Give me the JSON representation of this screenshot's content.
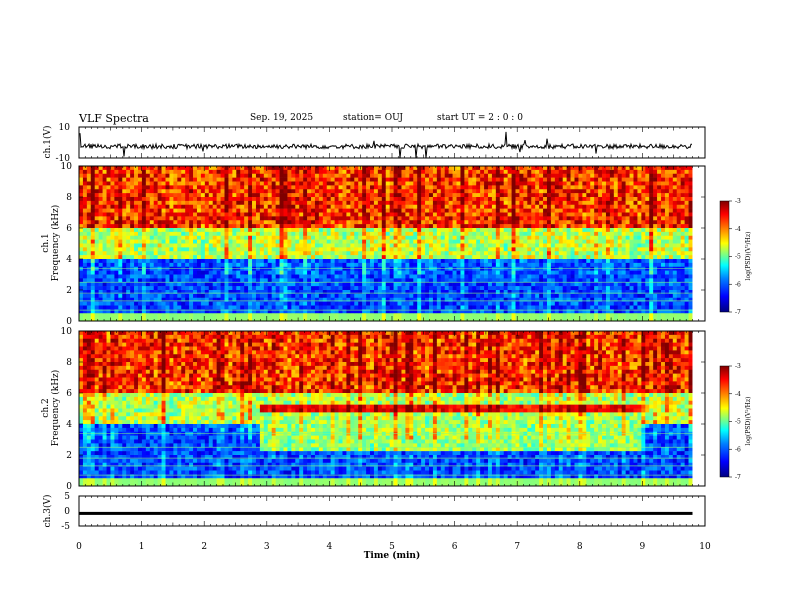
{
  "header": {
    "title": "VLF Spectra",
    "date": "Sep. 19, 2025",
    "station": "station= OUJ",
    "start": "start  UT =   2 : 0  : 0"
  },
  "colors": {
    "colormap": [
      "#00007f",
      "#0000ff",
      "#0080ff",
      "#00ffff",
      "#80ff80",
      "#ffff00",
      "#ff8000",
      "#ff0000",
      "#7f0000"
    ]
  },
  "chart_data": [
    {
      "type": "line",
      "name": "ch1-waveform",
      "ylabel": "ch.1(V)",
      "ylim": [
        -10,
        10
      ],
      "yticks": [
        "10",
        "-10"
      ],
      "xlim": [
        0,
        10
      ],
      "baseline": -2.5
    },
    {
      "type": "heatmap",
      "name": "ch1-spectrogram",
      "ylabel": "ch.1\nFrequency (kHz)",
      "ylim": [
        0,
        10
      ],
      "yticks": [
        "0",
        "2",
        "4",
        "6",
        "8",
        "10"
      ],
      "xlim": [
        0,
        9.8
      ],
      "colorbar": {
        "label": "log(PSD)(V²/Hz)",
        "range": [
          -7,
          -3
        ],
        "ticks": [
          "-3",
          "-4",
          "-5",
          "-6",
          "-7"
        ]
      },
      "features": [
        {
          "desc": "broadband sferics, high level above 6 kHz",
          "freq": [
            6,
            10
          ],
          "level": -3.5
        },
        {
          "desc": "mid band",
          "freq": [
            4,
            6
          ],
          "level": -4.8
        },
        {
          "desc": "low quiet band",
          "freq": [
            0,
            4
          ],
          "level": -6.3
        }
      ]
    },
    {
      "type": "heatmap",
      "name": "ch2-spectrogram",
      "ylabel": "ch.2\nFrequency (kHz)",
      "ylim": [
        0,
        10
      ],
      "yticks": [
        "0",
        "2",
        "4",
        "6",
        "8",
        "10"
      ],
      "xlim": [
        0,
        9.8
      ],
      "colorbar": {
        "label": "log(PSD)(V²/Hz)",
        "range": [
          -7,
          -3
        ],
        "ticks": [
          "-3",
          "-4",
          "-5",
          "-6",
          "-7"
        ]
      },
      "features": [
        {
          "desc": "narrowband emission",
          "freq": [
            4.8,
            5.2
          ],
          "time": [
            2.9,
            9.0
          ],
          "level": -3.8
        },
        {
          "desc": "enhanced band",
          "freq": [
            2.4,
            4.6
          ],
          "time": [
            2.9,
            9.0
          ],
          "level": -5.0
        }
      ]
    },
    {
      "type": "line",
      "name": "ch3-waveform",
      "ylabel": "ch.3(V)",
      "xlabel": "Time (min)",
      "ylim": [
        -5,
        5
      ],
      "yticks": [
        "5",
        "0",
        "-5"
      ],
      "xlim": [
        0,
        10
      ],
      "xticks": [
        "0",
        "1",
        "2",
        "3",
        "4",
        "5",
        "6",
        "7",
        "8",
        "9",
        "10"
      ],
      "value": -0.8
    }
  ]
}
